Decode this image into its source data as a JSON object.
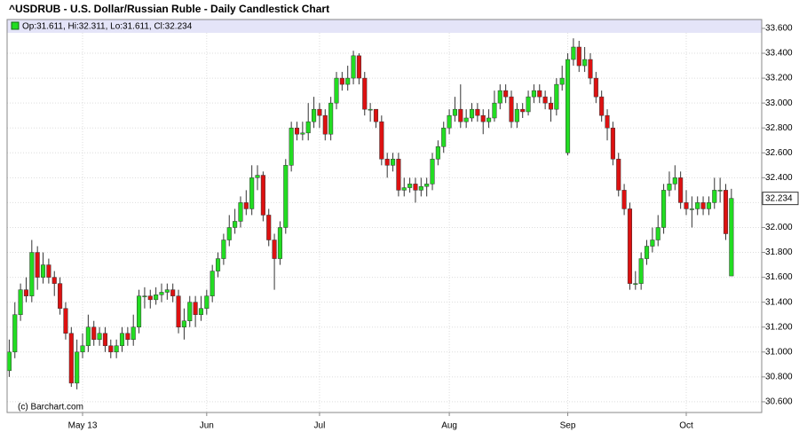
{
  "chart_data": {
    "type": "candlestick",
    "title": "^USDRUB - U.S. Dollar/Russian Ruble - Daily Candlestick Chart",
    "legend_text": "Op:31.611, Hi:32.311, Lo:31.611, Cl:32.234",
    "watermark": "(c) Barchart.com",
    "categories": [
      null,
      null,
      null,
      null,
      null,
      null,
      null,
      null,
      null,
      null,
      null,
      null,
      null,
      "May 13",
      null,
      null,
      null,
      null,
      null,
      null,
      null,
      null,
      null,
      null,
      null,
      null,
      null,
      null,
      null,
      null,
      null,
      null,
      null,
      null,
      null,
      "Jun",
      null,
      null,
      null,
      null,
      null,
      null,
      null,
      null,
      null,
      null,
      null,
      null,
      null,
      null,
      null,
      null,
      null,
      null,
      null,
      "Jul",
      null,
      null,
      null,
      null,
      null,
      null,
      null,
      null,
      null,
      null,
      null,
      null,
      null,
      null,
      null,
      null,
      null,
      null,
      null,
      null,
      null,
      null,
      "Aug",
      null,
      null,
      null,
      null,
      null,
      null,
      null,
      null,
      null,
      null,
      null,
      null,
      null,
      null,
      null,
      null,
      null,
      null,
      null,
      null,
      "Sep",
      null,
      null,
      null,
      null,
      null,
      null,
      null,
      null,
      null,
      null,
      null,
      null,
      null,
      null,
      null,
      null,
      null,
      null,
      null,
      null,
      "Oct",
      null,
      null,
      null,
      null,
      null,
      null,
      null,
      null
    ],
    "open": [
      30.85,
      31.0,
      31.3,
      31.5,
      31.45,
      31.8,
      31.6,
      31.7,
      31.6,
      31.55,
      31.35,
      31.15,
      30.75,
      31.0,
      31.05,
      31.2,
      31.1,
      31.15,
      31.05,
      31.0,
      31.05,
      31.15,
      31.1,
      31.2,
      31.45,
      31.45,
      31.42,
      31.46,
      31.48,
      31.5,
      31.45,
      31.2,
      31.25,
      31.4,
      31.3,
      31.35,
      31.45,
      31.65,
      31.75,
      31.9,
      32.0,
      32.05,
      32.2,
      32.15,
      32.4,
      32.42,
      32.1,
      31.9,
      31.75,
      32.0,
      32.5,
      32.8,
      32.75,
      32.76,
      32.85,
      32.95,
      32.9,
      32.75,
      33.0,
      33.2,
      33.15,
      33.2,
      33.38,
      33.2,
      32.95,
      32.95,
      32.85,
      32.55,
      32.5,
      32.55,
      32.3,
      32.32,
      32.35,
      32.3,
      32.33,
      32.35,
      32.55,
      32.65,
      32.8,
      32.9,
      32.95,
      32.85,
      32.88,
      32.95,
      32.9,
      32.85,
      32.88,
      33.0,
      33.1,
      33.05,
      32.85,
      32.95,
      32.93,
      33.05,
      33.1,
      33.05,
      33.0,
      32.95,
      33.15,
      32.6,
      33.35,
      33.45,
      33.3,
      33.35,
      33.2,
      33.05,
      32.9,
      32.8,
      32.55,
      32.3,
      32.15,
      31.55,
      31.55,
      31.75,
      31.85,
      31.9,
      32.0,
      32.3,
      32.35,
      32.4,
      32.2,
      32.15,
      32.15,
      32.2,
      32.15,
      32.2,
      32.3,
      32.3,
      31.611
    ],
    "high": [
      31.1,
      31.4,
      31.55,
      31.6,
      31.9,
      31.85,
      31.8,
      31.75,
      31.65,
      31.6,
      31.4,
      31.2,
      31.1,
      31.15,
      31.3,
      31.25,
      31.2,
      31.2,
      31.1,
      31.1,
      31.2,
      31.2,
      31.3,
      31.5,
      31.52,
      31.5,
      31.52,
      31.55,
      31.55,
      31.55,
      31.5,
      31.35,
      31.45,
      31.45,
      31.45,
      31.5,
      31.7,
      31.8,
      31.95,
      32.1,
      32.15,
      32.25,
      32.3,
      32.5,
      32.5,
      32.45,
      32.15,
      31.95,
      32.05,
      32.55,
      32.85,
      32.85,
      32.85,
      33.0,
      33.05,
      33.0,
      32.95,
      33.05,
      33.25,
      33.25,
      33.3,
      33.42,
      33.4,
      33.25,
      33.0,
      32.95,
      32.9,
      32.6,
      32.6,
      32.6,
      32.4,
      32.4,
      32.4,
      32.4,
      32.4,
      32.6,
      32.7,
      32.85,
      32.95,
      33.05,
      33.15,
      32.95,
      33.0,
      33.0,
      32.95,
      32.95,
      33.1,
      33.15,
      33.15,
      33.1,
      33.0,
      33.0,
      33.1,
      33.15,
      33.15,
      33.1,
      33.05,
      33.2,
      33.3,
      33.4,
      33.52,
      33.5,
      33.45,
      33.4,
      33.25,
      33.1,
      32.95,
      32.85,
      32.6,
      32.35,
      32.2,
      31.65,
      31.8,
      31.9,
      32.0,
      32.1,
      32.35,
      32.45,
      32.5,
      32.45,
      32.3,
      32.25,
      32.25,
      32.25,
      32.25,
      32.4,
      32.4,
      32.35,
      32.311
    ],
    "low": [
      30.8,
      30.95,
      31.25,
      31.4,
      31.4,
      31.5,
      31.55,
      31.55,
      31.45,
      31.3,
      31.1,
      30.72,
      30.7,
      30.95,
      31.0,
      31.05,
      31.05,
      31.0,
      30.95,
      30.95,
      31.0,
      31.05,
      31.05,
      31.15,
      31.35,
      31.35,
      31.38,
      31.4,
      31.42,
      31.4,
      31.15,
      31.1,
      31.2,
      31.2,
      31.25,
      31.3,
      31.4,
      31.6,
      31.7,
      31.85,
      31.95,
      32.0,
      32.1,
      32.1,
      32.3,
      32.05,
      31.85,
      31.5,
      31.7,
      31.95,
      32.45,
      32.7,
      32.7,
      32.7,
      32.8,
      32.8,
      32.7,
      32.7,
      32.95,
      33.1,
      33.1,
      33.15,
      33.15,
      32.9,
      32.85,
      32.8,
      32.5,
      32.4,
      32.45,
      32.25,
      32.25,
      32.28,
      32.2,
      32.25,
      32.25,
      32.3,
      32.5,
      32.6,
      32.75,
      32.85,
      32.8,
      32.8,
      32.85,
      32.85,
      32.75,
      32.8,
      32.85,
      32.95,
      33.0,
      32.8,
      32.8,
      32.88,
      32.9,
      33.0,
      33.0,
      32.95,
      32.85,
      32.9,
      33.1,
      32.58,
      33.3,
      33.25,
      33.25,
      33.15,
      33.0,
      32.85,
      32.7,
      32.5,
      32.25,
      32.1,
      31.5,
      31.5,
      31.5,
      31.7,
      31.8,
      31.85,
      31.95,
      32.25,
      32.3,
      32.15,
      32.1,
      32.0,
      32.1,
      32.1,
      32.1,
      32.15,
      32.2,
      31.9,
      31.611
    ],
    "close": [
      31.0,
      31.3,
      31.5,
      31.45,
      31.8,
      31.6,
      31.7,
      31.6,
      31.55,
      31.35,
      31.15,
      30.75,
      31.0,
      31.05,
      31.2,
      31.1,
      31.15,
      31.05,
      31.0,
      31.05,
      31.15,
      31.1,
      31.2,
      31.45,
      31.45,
      31.42,
      31.46,
      31.48,
      31.5,
      31.45,
      31.2,
      31.25,
      31.4,
      31.3,
      31.35,
      31.45,
      31.65,
      31.75,
      31.9,
      32.0,
      32.05,
      32.2,
      32.15,
      32.4,
      32.42,
      32.1,
      31.9,
      31.75,
      32.0,
      32.5,
      32.8,
      32.75,
      32.76,
      32.85,
      32.95,
      32.9,
      32.75,
      33.0,
      33.2,
      33.15,
      33.2,
      33.38,
      33.2,
      32.95,
      32.95,
      32.85,
      32.55,
      32.5,
      32.55,
      32.3,
      32.32,
      32.35,
      32.3,
      32.33,
      32.35,
      32.55,
      32.65,
      32.8,
      32.9,
      32.95,
      32.85,
      32.88,
      32.95,
      32.9,
      32.85,
      32.88,
      33.0,
      33.1,
      33.05,
      32.85,
      32.95,
      32.93,
      33.05,
      33.1,
      33.05,
      33.0,
      32.95,
      33.15,
      33.2,
      33.35,
      33.45,
      33.3,
      33.35,
      33.2,
      33.05,
      32.9,
      32.8,
      32.55,
      32.3,
      32.15,
      31.55,
      31.55,
      31.75,
      31.85,
      31.9,
      32.0,
      32.3,
      32.35,
      32.4,
      32.2,
      32.15,
      32.15,
      32.2,
      32.15,
      32.2,
      32.3,
      32.3,
      31.95,
      32.234
    ],
    "up_color": "#22dd22",
    "down_color": "#dd1111",
    "ylim": [
      30.514,
      33.671
    ],
    "yticks": [
      {
        "value": 30.6,
        "label": "30.600"
      },
      {
        "value": 30.8,
        "label": "30.800"
      },
      {
        "value": 31.0,
        "label": "31.000"
      },
      {
        "value": 31.2,
        "label": "31.200"
      },
      {
        "value": 31.4,
        "label": "31.400"
      },
      {
        "value": 31.6,
        "label": "31.600"
      },
      {
        "value": 31.8,
        "label": "31.800"
      },
      {
        "value": 32.0,
        "label": "32.000"
      },
      {
        "value": 32.2,
        "label": "32.200"
      },
      {
        "value": 32.4,
        "label": "32.400"
      },
      {
        "value": 32.6,
        "label": "32.600"
      },
      {
        "value": 32.8,
        "label": "32.800"
      },
      {
        "value": 33.0,
        "label": "33.000"
      },
      {
        "value": 33.2,
        "label": "33.200"
      },
      {
        "value": 33.4,
        "label": "33.400"
      },
      {
        "value": 33.6,
        "label": "33.600"
      }
    ],
    "grid": true
  }
}
